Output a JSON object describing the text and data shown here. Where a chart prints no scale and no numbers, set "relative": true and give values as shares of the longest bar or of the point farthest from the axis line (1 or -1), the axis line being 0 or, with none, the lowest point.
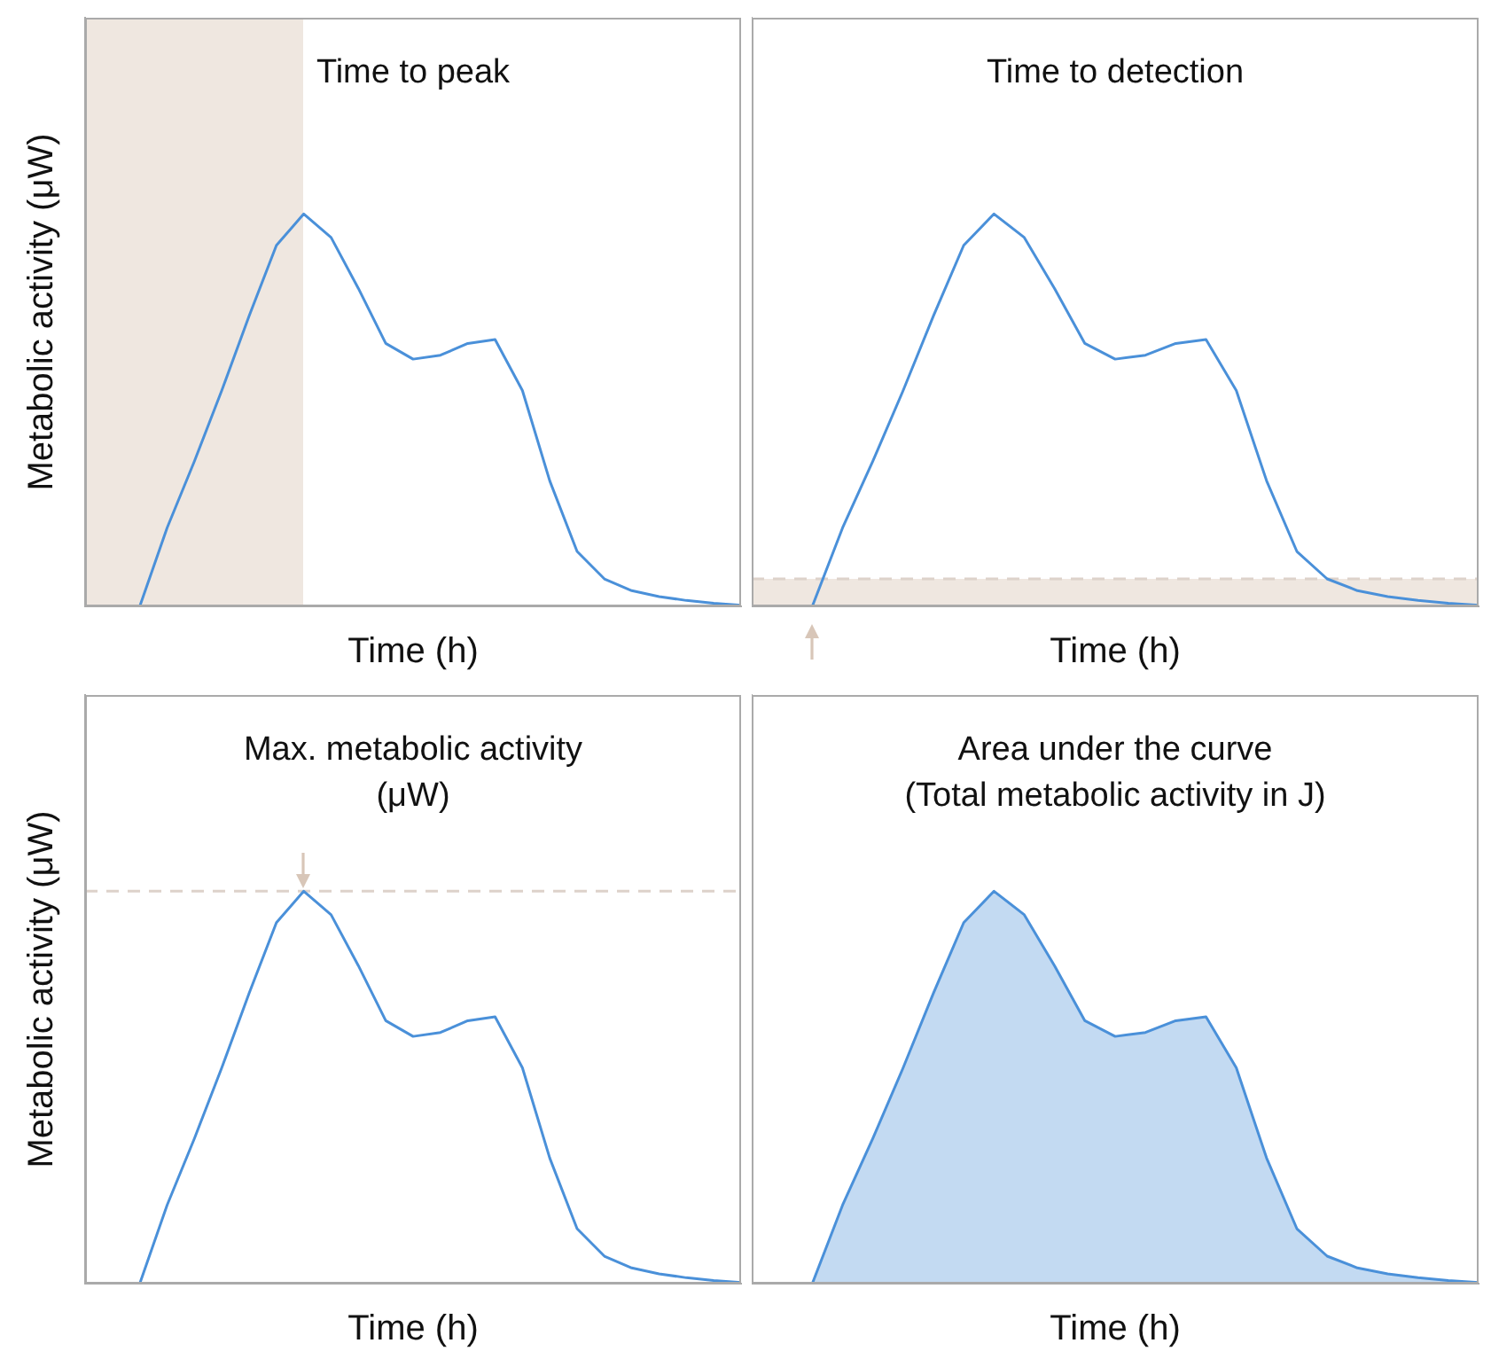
{
  "chart_data": [
    {
      "type": "line",
      "title": "Time to peak",
      "xlabel": "Time (h)",
      "ylabel": "Metabolic activity (μW)",
      "relative": true,
      "marker": "none",
      "categories": [
        null,
        null,
        null,
        null,
        null,
        null,
        null,
        null,
        null,
        null,
        null,
        null,
        null,
        null,
        null,
        null,
        null,
        null,
        null,
        null,
        null,
        null,
        null,
        null,
        null
      ],
      "series": [
        {
          "color": "#4a90d9",
          "values": [
            null,
            null,
            0,
            0.2,
            0.37,
            0.55,
            0.74,
            0.92,
            1,
            0.94,
            0.81,
            0.67,
            0.63,
            0.64,
            0.67,
            0.68,
            0.55,
            0.32,
            0.14,
            0.07,
            0.04,
            0.025,
            0.015,
            0.008,
            0.003
          ]
        }
      ],
      "grid": false
    },
    {
      "type": "line",
      "title": "Time to detection",
      "xlabel": "Time (h)",
      "relative": true,
      "marker": "none",
      "categories": [
        null,
        null,
        null,
        null,
        null,
        null,
        null,
        null,
        null,
        null,
        null,
        null,
        null,
        null,
        null,
        null,
        null,
        null,
        null,
        null,
        null,
        null,
        null,
        null,
        null
      ],
      "series": [
        {
          "color": "#4a90d9",
          "values": [
            null,
            null,
            0,
            0.2,
            0.37,
            0.55,
            0.74,
            0.92,
            1,
            0.94,
            0.81,
            0.67,
            0.63,
            0.64,
            0.67,
            0.68,
            0.55,
            0.32,
            0.14,
            0.07,
            0.04,
            0.025,
            0.015,
            0.008,
            0.003
          ]
        }
      ],
      "bands": [
        {
          "axis": "y",
          "from": 0,
          "to": 0.07,
          "color": "#efe7e0"
        }
      ],
      "ref_lines": [
        {
          "axis": "y",
          "value": 0.07,
          "color": "#ddd2ca",
          "line_style": "dashed"
        }
      ]
    },
    {
      "type": "line",
      "title": "Max. metabolic activity",
      "subtitle": "(μW)",
      "xlabel": "Time (h)",
      "ylabel": "Metabolic activity (μW)",
      "relative": true,
      "marker": "none",
      "categories": [
        null,
        null,
        null,
        null,
        null,
        null,
        null,
        null,
        null,
        null,
        null,
        null,
        null,
        null,
        null,
        null,
        null,
        null,
        null,
        null,
        null,
        null,
        null,
        null,
        null
      ],
      "series": [
        {
          "color": "#4a90d9",
          "values": [
            null,
            null,
            0,
            0.2,
            0.37,
            0.55,
            0.74,
            0.92,
            1,
            0.94,
            0.81,
            0.67,
            0.63,
            0.64,
            0.67,
            0.68,
            0.55,
            0.32,
            0.14,
            0.07,
            0.04,
            0.025,
            0.015,
            0.008,
            0.003
          ]
        }
      ],
      "ref_lines": [
        {
          "axis": "y",
          "value": 1,
          "color": "#ddd2ca",
          "line_style": "dashed"
        }
      ]
    },
    {
      "type": "area",
      "title": "Area under the curve",
      "subtitle": "(Total metabolic activity in J)",
      "xlabel": "Time (h)",
      "relative": true,
      "marker": "none",
      "categories": [
        null,
        null,
        null,
        null,
        null,
        null,
        null,
        null,
        null,
        null,
        null,
        null,
        null,
        null,
        null,
        null,
        null,
        null,
        null,
        null,
        null,
        null,
        null,
        null,
        null
      ],
      "series": [
        {
          "color": "#4a90d9",
          "values": [
            null,
            null,
            0,
            0.2,
            0.37,
            0.55,
            0.74,
            0.92,
            1,
            0.94,
            0.81,
            0.67,
            0.63,
            0.64,
            0.67,
            0.68,
            0.55,
            0.32,
            0.14,
            0.07,
            0.04,
            0.025,
            0.015,
            0.008,
            0.003
          ]
        }
      ]
    }
  ]
}
